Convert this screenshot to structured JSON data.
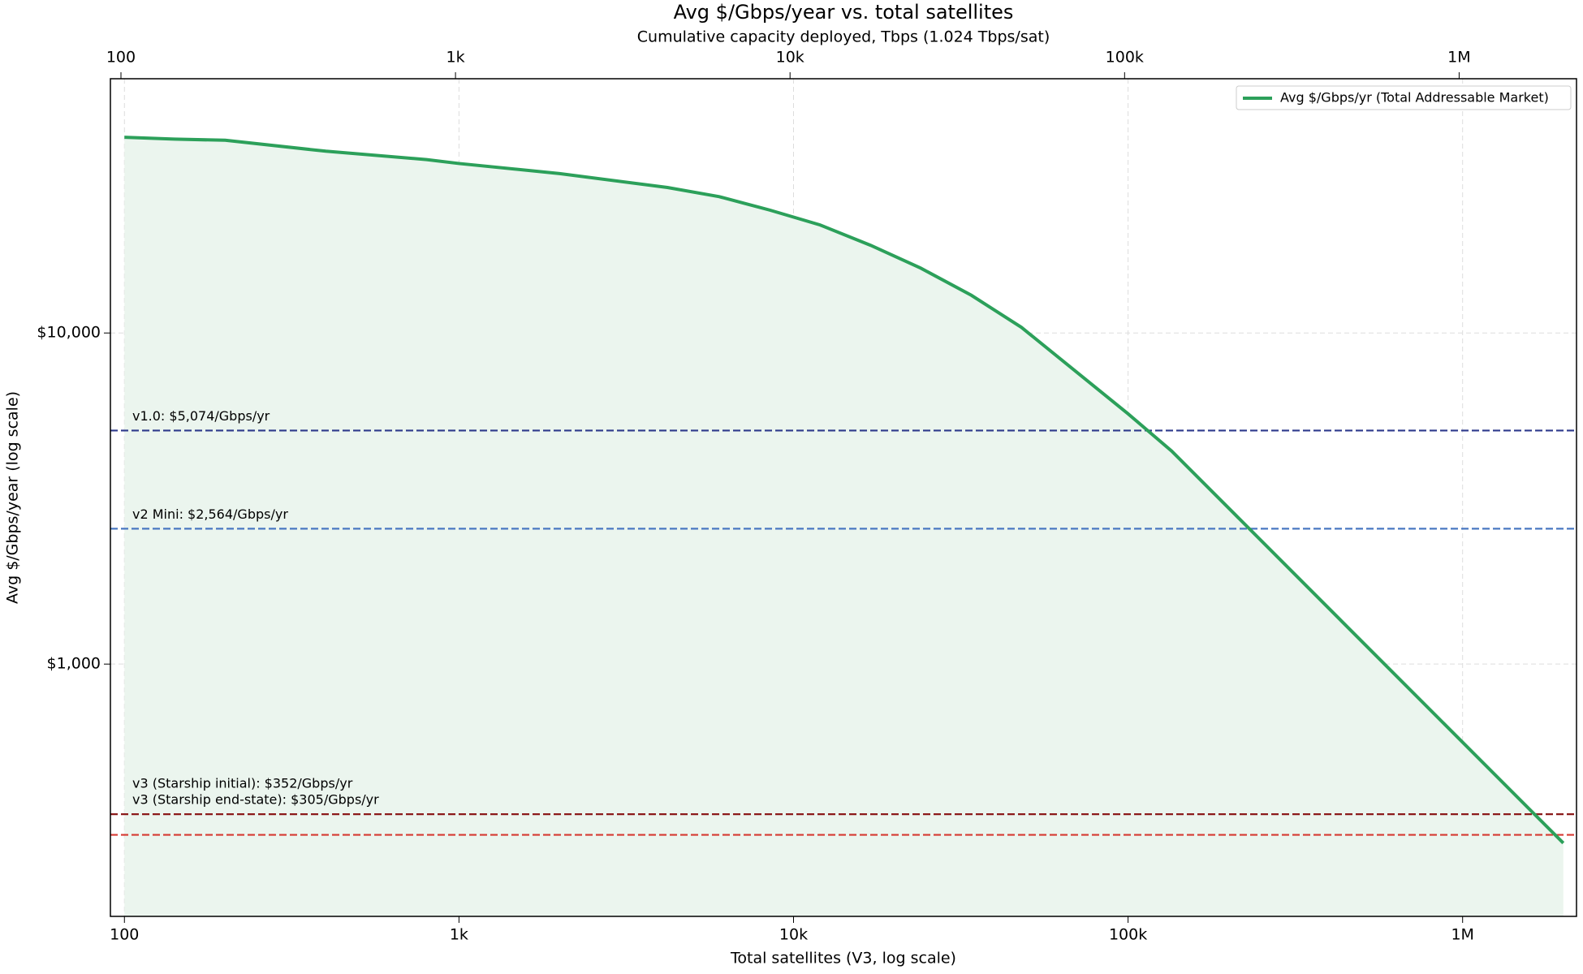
{
  "chart_data": {
    "type": "line",
    "title": "Avg $/Gbps/year vs. total satellites",
    "subtitle": "Cumulative capacity deployed, Tbps (1.024 Tbps/sat)",
    "xlabel": "Total satellites (V3, log scale)",
    "ylabel": "Avg $/Gbps/year (log scale)",
    "x": [
      100,
      141,
      200,
      400,
      800,
      1000,
      2000,
      4200,
      6000,
      8500,
      12000,
      17000,
      24000,
      34000,
      48000,
      100000,
      135000,
      2000000
    ],
    "series": [
      {
        "name": "Avg $/Gbps/yr (Total Addressable Market)",
        "color": "#2ca05a",
        "values": [
          39000,
          38500,
          38200,
          35400,
          33400,
          32500,
          30300,
          27500,
          25800,
          23500,
          21200,
          18400,
          15700,
          13000,
          10400,
          5700,
          4400,
          288
        ]
      }
    ],
    "fill_color": "#ebf5ee",
    "xscale": "log",
    "yscale": "log",
    "xlim": [
      90.8,
      2190000
    ],
    "ylim": [
      173,
      58600
    ],
    "xticks": [
      100,
      {
        "value": 1000,
        "label": "1k"
      },
      {
        "value": 10000,
        "label": "10k"
      },
      {
        "value": 100000,
        "label": "100k"
      },
      {
        "value": 1000000,
        "label": "1M"
      }
    ],
    "x2lim": [
      93,
      2243000
    ],
    "x2ticks": [
      100,
      {
        "value": 1000,
        "label": "1k"
      },
      {
        "value": 10000,
        "label": "10k"
      },
      {
        "value": 100000,
        "label": "100k"
      },
      {
        "value": 1000000,
        "label": "1M"
      }
    ],
    "yticks": [
      {
        "value": 1000,
        "label": "$1,000"
      },
      {
        "value": 10000,
        "label": "$10,000"
      }
    ],
    "hlines": [
      {
        "value": 5074,
        "label": "v1.0: $5,074/Gbps/yr",
        "color": "#2e3a8c",
        "text_color": "#2e3a8c"
      },
      {
        "value": 2564,
        "label": "v2 Mini: $2,564/Gbps/yr",
        "color": "#4a78c2",
        "text_color": "#4a78c2"
      },
      {
        "value": 352,
        "label": "v3 (Starship initial): $352/Gbps/yr",
        "color": "#8b1a1a",
        "text_color": "#444444"
      },
      {
        "value": 305,
        "label": "v3 (Starship end-state): $305/Gbps/yr",
        "color": "#d63a33",
        "text_color": "#444444"
      }
    ],
    "grid": true,
    "legend": "upper right"
  }
}
